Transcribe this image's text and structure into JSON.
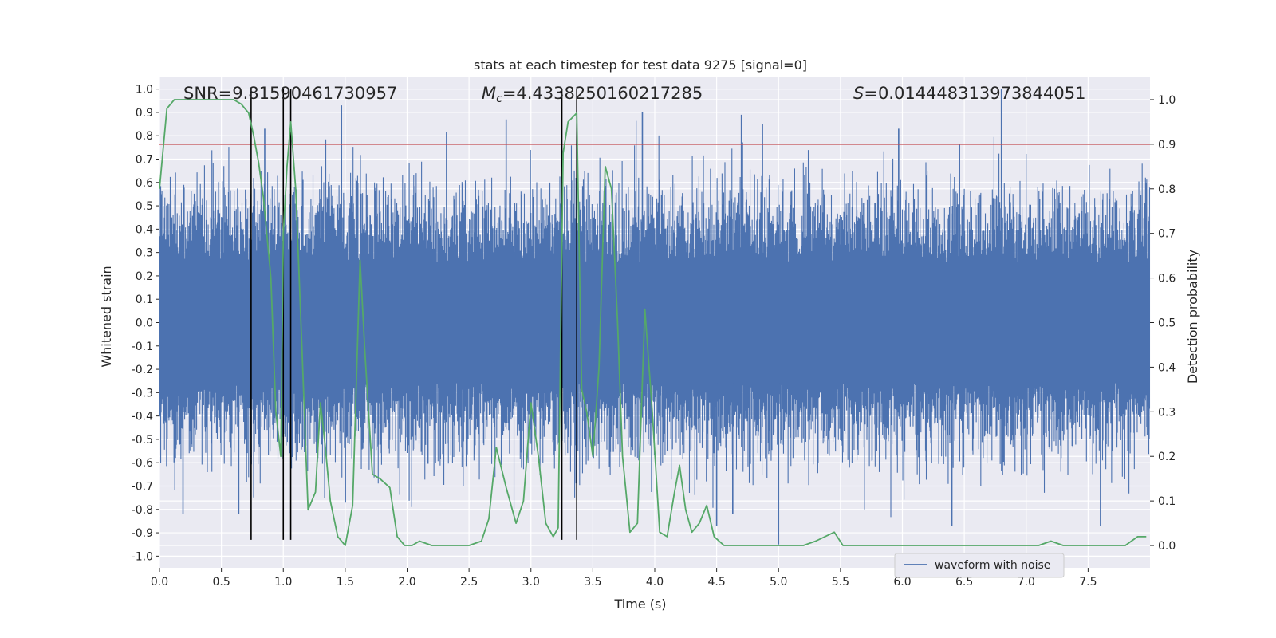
{
  "chart_data": {
    "type": "line",
    "title": "stats at each timestep for test data 9275 [signal=0]",
    "xlabel": "Time (s)",
    "ylabel": "Whitened strain",
    "ylabel_right": "Detection probability",
    "xlim": [
      0,
      8.0
    ],
    "ylim": [
      -1.05,
      1.05
    ],
    "ylim_right": [
      -0.05,
      1.05
    ],
    "x_ticks": [
      "0.0",
      "0.5",
      "1.0",
      "1.5",
      "2.0",
      "2.5",
      "3.0",
      "3.5",
      "4.0",
      "4.5",
      "5.0",
      "5.5",
      "6.0",
      "6.5",
      "7.0",
      "7.5"
    ],
    "y_ticks": [
      "1.0",
      "0.9",
      "0.8",
      "0.7",
      "0.6",
      "0.5",
      "0.4",
      "0.3",
      "0.2",
      "0.1",
      "0.0",
      "-0.1",
      "-0.2",
      "-0.3",
      "-0.4",
      "-0.5",
      "-0.6",
      "-0.7",
      "-0.8",
      "-0.9",
      "-1.0"
    ],
    "y_ticks_right": [
      "1.0",
      "0.9",
      "0.8",
      "0.7",
      "0.6",
      "0.5",
      "0.4",
      "0.3",
      "0.2",
      "0.1",
      "0.0"
    ],
    "annotations": {
      "snr": "SNR=9.81590461730957",
      "mc_symbol": "M",
      "mc_sub": "c",
      "mc_value": "=4.4338250160217285",
      "s_symbol": "S",
      "s_value": "=0.014448313973844051"
    },
    "threshold_right": 0.9,
    "vertical_lines_x": [
      0.74,
      1.0,
      1.06,
      3.25,
      3.37
    ],
    "legend": {
      "label": "waveform with noise",
      "placement": "lower-right"
    },
    "series": [
      {
        "name": "waveform with noise",
        "axis": "left",
        "color": "#4c72b0",
        "envelope_typical": 0.42,
        "spike_peaks": [
          {
            "x": 1.47,
            "y": 0.93
          },
          {
            "x": 2.8,
            "y": 0.87
          },
          {
            "x": 3.9,
            "y": 0.9
          },
          {
            "x": 4.7,
            "y": 0.89
          },
          {
            "x": 4.87,
            "y": 0.85
          },
          {
            "x": 6.8,
            "y": 1.0
          },
          {
            "x": 0.85,
            "y": 0.83
          },
          {
            "x": 5.97,
            "y": 0.83
          },
          {
            "x": 5.0,
            "y": -0.95
          },
          {
            "x": 0.19,
            "y": -0.82
          },
          {
            "x": 0.64,
            "y": -0.82
          },
          {
            "x": 4.5,
            "y": -0.87
          },
          {
            "x": 6.4,
            "y": -0.87
          },
          {
            "x": 7.6,
            "y": -0.87
          },
          {
            "x": 4.63,
            "y": -0.82
          }
        ]
      },
      {
        "name": "detection probability",
        "axis": "right",
        "color": "#55a868",
        "x": [
          0.0,
          0.06,
          0.12,
          0.2,
          0.3,
          0.4,
          0.5,
          0.6,
          0.66,
          0.72,
          0.76,
          0.8,
          0.84,
          0.9,
          0.94,
          0.98,
          1.0,
          1.03,
          1.06,
          1.1,
          1.15,
          1.2,
          1.26,
          1.3,
          1.34,
          1.38,
          1.44,
          1.5,
          1.56,
          1.62,
          1.66,
          1.72,
          1.78,
          1.86,
          1.92,
          1.98,
          2.04,
          2.1,
          2.2,
          2.3,
          2.4,
          2.5,
          2.6,
          2.66,
          2.72,
          2.8,
          2.88,
          2.94,
          3.0,
          3.06,
          3.12,
          3.18,
          3.22,
          3.26,
          3.3,
          3.37,
          3.41,
          3.45,
          3.5,
          3.55,
          3.6,
          3.65,
          3.7,
          3.74,
          3.8,
          3.86,
          3.92,
          3.98,
          4.04,
          4.1,
          4.16,
          4.2,
          4.25,
          4.3,
          4.36,
          4.42,
          4.48,
          4.56,
          4.7,
          4.85,
          5.0,
          5.1,
          5.2,
          5.3,
          5.45,
          5.52,
          5.6,
          5.8,
          6.0,
          6.2,
          6.3,
          6.4,
          6.5,
          6.6,
          6.7,
          6.8,
          6.9,
          7.0,
          7.1,
          7.2,
          7.3,
          7.4,
          7.5,
          7.6,
          7.7,
          7.8,
          7.9,
          7.97
        ],
        "y": [
          0.8,
          0.98,
          1.0,
          1.0,
          1.0,
          1.0,
          1.0,
          1.0,
          0.99,
          0.97,
          0.92,
          0.86,
          0.78,
          0.6,
          0.3,
          0.2,
          0.7,
          0.85,
          0.95,
          0.8,
          0.45,
          0.08,
          0.12,
          0.32,
          0.22,
          0.1,
          0.02,
          0.0,
          0.09,
          0.64,
          0.43,
          0.16,
          0.15,
          0.13,
          0.02,
          0.0,
          0.0,
          0.01,
          0.0,
          0.0,
          0.0,
          0.0,
          0.01,
          0.06,
          0.22,
          0.13,
          0.05,
          0.1,
          0.32,
          0.2,
          0.05,
          0.02,
          0.04,
          0.88,
          0.95,
          0.97,
          0.35,
          0.3,
          0.2,
          0.4,
          0.85,
          0.8,
          0.5,
          0.2,
          0.03,
          0.05,
          0.53,
          0.3,
          0.03,
          0.02,
          0.12,
          0.18,
          0.08,
          0.03,
          0.05,
          0.09,
          0.02,
          0.0,
          0.0,
          0.0,
          0.0,
          0.0,
          0.0,
          0.01,
          0.03,
          0.0,
          0.0,
          0.0,
          0.0,
          0.0,
          0.0,
          0.0,
          0.0,
          0.0,
          0.0,
          0.0,
          0.0,
          0.0,
          0.0,
          0.01,
          0.0,
          0.0,
          0.0,
          0.0,
          0.0,
          0.0,
          0.02,
          0.02
        ]
      },
      {
        "name": "threshold",
        "axis": "right",
        "color": "#c44e52",
        "x": [
          0.0,
          8.0
        ],
        "y": [
          0.9,
          0.9
        ]
      }
    ]
  }
}
